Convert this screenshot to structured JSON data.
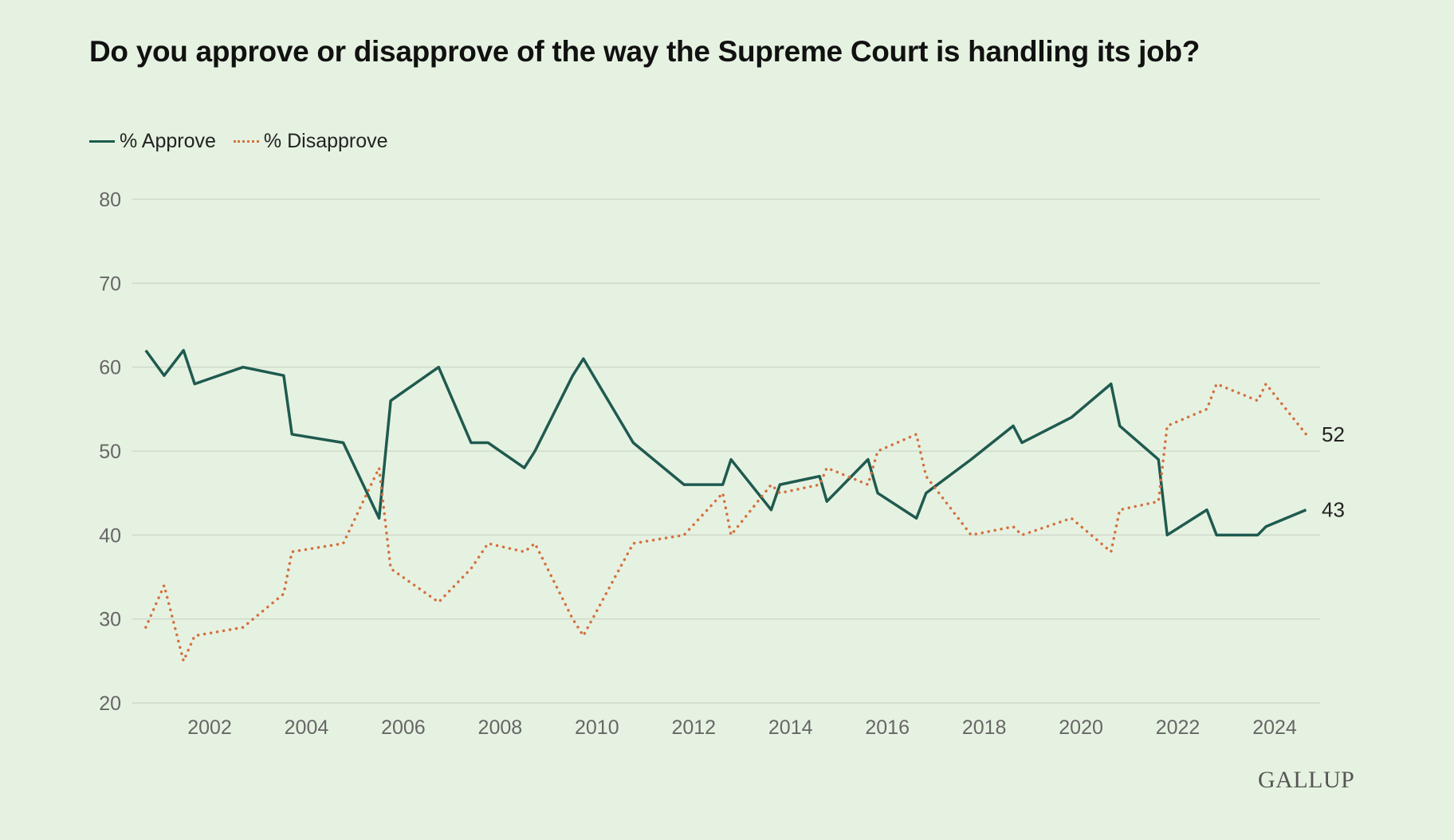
{
  "title": "Do you approve or disapprove of the way the Supreme Court is handling its job?",
  "logo": "GALLUP",
  "colors": {
    "approve": "#1f5a50",
    "disapprove": "#d4703f",
    "background": "#e6f2e1",
    "grid": "#cfd9cc"
  },
  "chart_data": {
    "type": "line",
    "title": "Do you approve or disapprove of the way the Supreme Court is handling its job?",
    "xlabel": "",
    "ylabel": "",
    "ylim": [
      20,
      80
    ],
    "xlim": [
      2000.5,
      2024.8
    ],
    "yticks": [
      "20",
      "30",
      "40",
      "50",
      "60",
      "70",
      "80"
    ],
    "xticks": [
      "2002",
      "2004",
      "2006",
      "2008",
      "2010",
      "2012",
      "2014",
      "2016",
      "2018",
      "2020",
      "2022",
      "2024"
    ],
    "grid": true,
    "legend": "top-left",
    "x": [
      2000.68,
      2001.06,
      2001.46,
      2001.69,
      2002.69,
      2003.53,
      2003.7,
      2004.76,
      2005.5,
      2005.74,
      2006.73,
      2007.4,
      2007.75,
      2008.5,
      2008.72,
      2009.5,
      2009.72,
      2010.75,
      2011.8,
      2012.6,
      2012.77,
      2013.6,
      2013.78,
      2014.6,
      2014.75,
      2015.6,
      2015.8,
      2016.6,
      2016.8,
      2017.73,
      2018.6,
      2018.78,
      2019.8,
      2020.62,
      2020.8,
      2021.6,
      2021.78,
      2022.6,
      2022.8,
      2023.65,
      2023.82,
      2024.65
    ],
    "series": [
      {
        "name": "% Approve",
        "style": "solid",
        "end_label": "43",
        "values": [
          62,
          59,
          62,
          58,
          60,
          59,
          52,
          51,
          42,
          56,
          60,
          51,
          51,
          48,
          50,
          59,
          61,
          51,
          46,
          46,
          49,
          43,
          46,
          47,
          44,
          49,
          45,
          42,
          45,
          49,
          53,
          51,
          54,
          58,
          53,
          49,
          40,
          43,
          40,
          40,
          41,
          43
        ]
      },
      {
        "name": "% Disapprove",
        "style": "dotted",
        "end_label": "52",
        "values": [
          29,
          34,
          25,
          28,
          29,
          33,
          38,
          39,
          48,
          36,
          32,
          36,
          39,
          38,
          39,
          30,
          28,
          39,
          40,
          45,
          40,
          46,
          45,
          46,
          48,
          46,
          50,
          52,
          47,
          40,
          41,
          40,
          42,
          38,
          43,
          44,
          53,
          55,
          58,
          56,
          58,
          52
        ]
      }
    ]
  }
}
